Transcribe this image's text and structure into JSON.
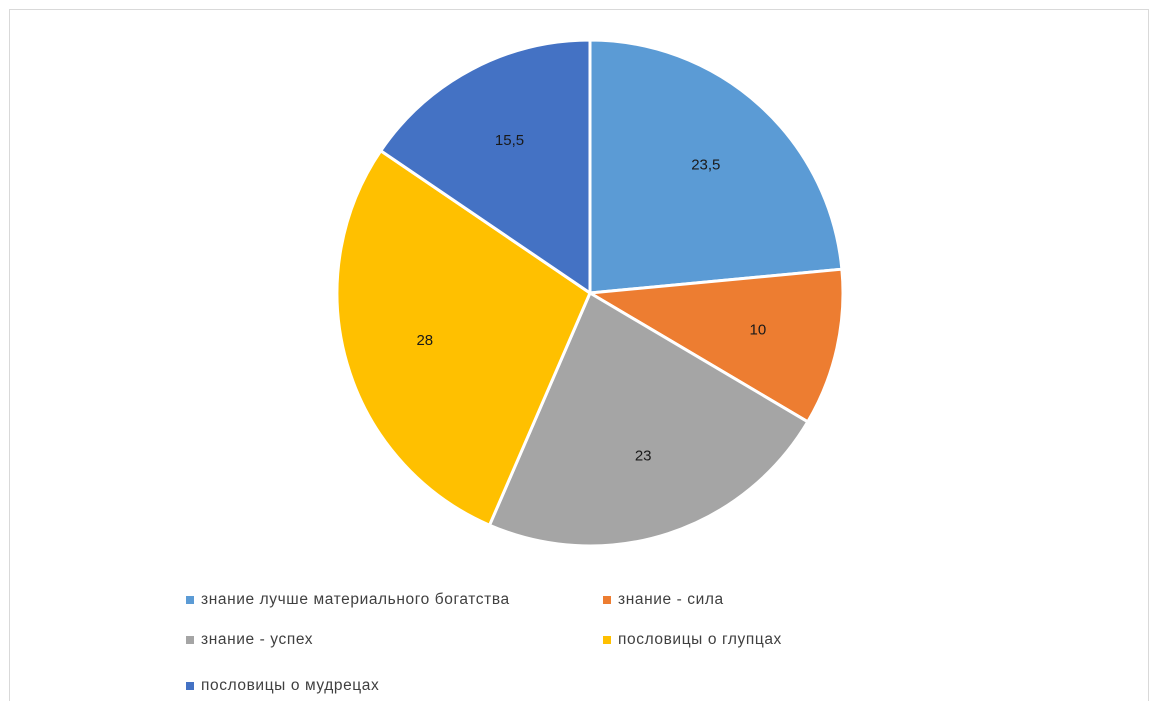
{
  "chart_data": {
    "type": "pie",
    "title": "",
    "categories": [
      "знание лучше материального богатства",
      "знание - сила",
      "знание - успех",
      "пословицы о глупцах",
      "пословицы о мудрецах"
    ],
    "values": [
      23.5,
      10,
      23,
      28,
      15.5
    ],
    "value_labels": [
      "23,5",
      "10",
      "23",
      "28",
      "15,5"
    ],
    "colors": [
      "#5B9BD5",
      "#ED7D31",
      "#A5A5A5",
      "#FFC000",
      "#4472C4"
    ],
    "legend_position": "bottom",
    "start_angle_deg": 0,
    "direction": "clockwise"
  }
}
